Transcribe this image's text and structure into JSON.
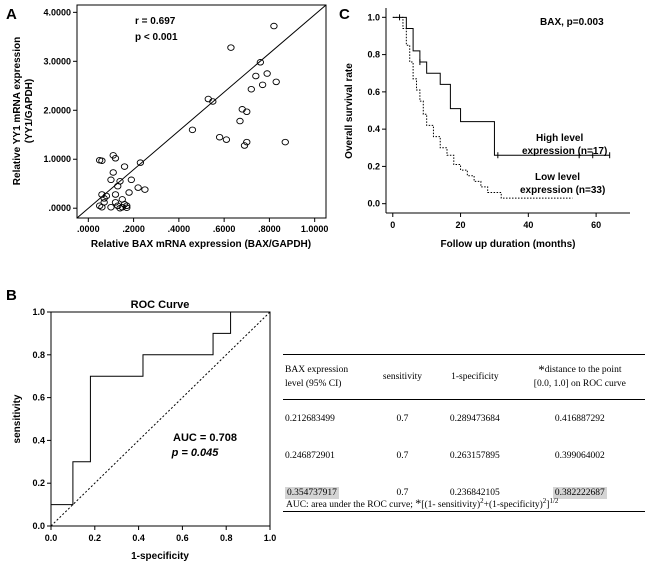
{
  "panels": {
    "a_label": "A",
    "b_label": "B",
    "c_label": "C"
  },
  "chart_data": [
    {
      "type": "scatter",
      "panel": "A",
      "xlabel": "Relative BAX mRNA expression (BAX/GAPDH)",
      "ylabel": "Relative YY1 mRNA expression",
      "ylabel2": "(YY1/GAPDH)",
      "xlim": [
        -0.05,
        1.05
      ],
      "ylim": [
        -0.2,
        4.15
      ],
      "xticks": [
        ".0000",
        ".2000",
        ".4000",
        ".6000",
        ".8000",
        "1.0000"
      ],
      "xtick_values": [
        0,
        0.2,
        0.4,
        0.6,
        0.8,
        1.0
      ],
      "yticks": [
        ".0000",
        "1.0000",
        "2.0000",
        "3.0000",
        "4.0000"
      ],
      "ytick_values": [
        0,
        1,
        2,
        3,
        4
      ],
      "annotation_r": "r = 0.697",
      "annotation_p": "p < 0.001",
      "fit_line": [
        [
          -0.05,
          -0.2
        ],
        [
          1.05,
          4.15
        ]
      ],
      "points": [
        [
          0.05,
          0.98
        ],
        [
          0.06,
          0.97
        ],
        [
          0.06,
          0.28
        ],
        [
          0.07,
          0.2
        ],
        [
          0.07,
          0.12
        ],
        [
          0.08,
          0.25
        ],
        [
          0.05,
          0.05
        ],
        [
          0.06,
          0.02
        ],
        [
          0.1,
          0.58
        ],
        [
          0.11,
          0.73
        ],
        [
          0.11,
          1.08
        ],
        [
          0.12,
          1.02
        ],
        [
          0.13,
          0.45
        ],
        [
          0.14,
          0.55
        ],
        [
          0.12,
          0.12
        ],
        [
          0.13,
          0.05
        ],
        [
          0.14,
          0.0
        ],
        [
          0.15,
          0.02
        ],
        [
          0.15,
          0.18
        ],
        [
          0.16,
          0.85
        ],
        [
          0.17,
          0.05
        ],
        [
          0.18,
          0.32
        ],
        [
          0.19,
          0.58
        ],
        [
          0.22,
          0.42
        ],
        [
          0.17,
          0.01
        ],
        [
          0.23,
          0.93
        ],
        [
          0.25,
          0.38
        ],
        [
          0.1,
          0.02
        ],
        [
          0.12,
          0.28
        ],
        [
          0.16,
          0.08
        ],
        [
          0.46,
          1.6
        ],
        [
          0.53,
          2.23
        ],
        [
          0.58,
          1.45
        ],
        [
          0.61,
          1.4
        ],
        [
          0.63,
          3.28
        ],
        [
          0.67,
          1.78
        ],
        [
          0.68,
          2.02
        ],
        [
          0.69,
          1.28
        ],
        [
          0.7,
          1.35
        ],
        [
          0.7,
          1.97
        ],
        [
          0.72,
          2.43
        ],
        [
          0.74,
          2.7
        ],
        [
          0.76,
          2.98
        ],
        [
          0.77,
          2.52
        ],
        [
          0.79,
          2.75
        ],
        [
          0.82,
          3.72
        ],
        [
          0.83,
          2.58
        ],
        [
          0.87,
          1.35
        ],
        [
          0.55,
          2.18
        ]
      ]
    },
    {
      "type": "line",
      "panel": "C",
      "title": "BAX, p=0.003",
      "xlabel": "Follow up duration (months)",
      "ylabel": "Overall survival rate",
      "xlim": [
        -2,
        70
      ],
      "ylim": [
        -0.05,
        1.05
      ],
      "xticks": [
        "0",
        "20",
        "40",
        "60"
      ],
      "xtick_values": [
        0,
        20,
        40,
        60
      ],
      "yticks": [
        "0.0",
        "0.2",
        "0.4",
        "0.6",
        "0.8",
        "1.0"
      ],
      "ytick_values": [
        0,
        0.2,
        0.4,
        0.6,
        0.8,
        1.0
      ],
      "series": [
        {
          "name": "High level expression (n=17)",
          "label_line1": "High level",
          "label_line2": "expression (n=17)",
          "style": "solid",
          "steps": [
            [
              0,
              1.0
            ],
            [
              4,
              0.94
            ],
            [
              6,
              0.82
            ],
            [
              8,
              0.76
            ],
            [
              10,
              0.7
            ],
            [
              14,
              0.64
            ],
            [
              17,
              0.51
            ],
            [
              20,
              0.44
            ],
            [
              30,
              0.26
            ],
            [
              64,
              0.26
            ]
          ],
          "censored": [
            [
              2,
              1.0
            ],
            [
              8,
              0.76
            ],
            [
              31,
              0.26
            ],
            [
              55,
              0.26
            ],
            [
              59,
              0.26
            ],
            [
              64,
              0.26
            ]
          ]
        },
        {
          "name": "Low level expression (n=33)",
          "label_line1": "Low level",
          "label_line2": "expression (n=33)",
          "style": "dotted",
          "steps": [
            [
              0,
              1.0
            ],
            [
              3,
              0.94
            ],
            [
              4,
              0.85
            ],
            [
              5,
              0.76
            ],
            [
              6,
              0.67
            ],
            [
              7,
              0.61
            ],
            [
              8,
              0.55
            ],
            [
              9,
              0.48
            ],
            [
              10,
              0.42
            ],
            [
              12,
              0.36
            ],
            [
              14,
              0.3
            ],
            [
              16,
              0.26
            ],
            [
              18,
              0.21
            ],
            [
              20,
              0.18
            ],
            [
              22,
              0.15
            ],
            [
              24,
              0.12
            ],
            [
              26,
              0.09
            ],
            [
              28,
              0.06
            ],
            [
              32,
              0.03
            ],
            [
              53,
              0.03
            ]
          ],
          "censored": []
        }
      ]
    },
    {
      "type": "line",
      "panel": "B",
      "title": "ROC Curve",
      "xlabel": "1-specificity",
      "ylabel": "sensitivity",
      "xlim": [
        0,
        1
      ],
      "ylim": [
        0,
        1
      ],
      "xticks": [
        "0.0",
        "0.2",
        "0.4",
        "0.6",
        "0.8",
        "1.0"
      ],
      "yticks": [
        "0.0",
        "0.2",
        "0.4",
        "0.6",
        "0.8",
        "1.0"
      ],
      "tick_values": [
        0,
        0.2,
        0.4,
        0.6,
        0.8,
        1.0
      ],
      "annotation_auc": "AUC = 0.708",
      "annotation_p": "p = 0.045",
      "roc": [
        [
          0,
          0
        ],
        [
          0,
          0.1
        ],
        [
          0.1,
          0.1
        ],
        [
          0.1,
          0.3
        ],
        [
          0.18,
          0.3
        ],
        [
          0.18,
          0.7
        ],
        [
          0.42,
          0.7
        ],
        [
          0.42,
          0.8
        ],
        [
          0.74,
          0.8
        ],
        [
          0.74,
          0.9
        ],
        [
          0.82,
          0.9
        ],
        [
          0.82,
          1.0
        ],
        [
          1.0,
          1.0
        ]
      ],
      "reference": [
        [
          0,
          0
        ],
        [
          1,
          1
        ]
      ]
    }
  ],
  "table": {
    "headers": {
      "h1_line1": "BAX expression",
      "h1_line2": "level (95% CI)",
      "h2": "sensitivity",
      "h3": "1-specificity",
      "h4_star": "*",
      "h4_line1": "distance to the point",
      "h4_line2": "[0.0, 1.0] on ROC curve"
    },
    "rows": [
      {
        "level": "0.212683499",
        "sensitivity": "0.7",
        "specificity": "0.289473684",
        "distance": "0.416887292"
      },
      {
        "level": "0.246872901",
        "sensitivity": "0.7",
        "specificity": "0.263157895",
        "distance": "0.399064002"
      },
      {
        "level": "0.354737917",
        "sensitivity": "0.7",
        "specificity": "0.236842105",
        "distance": "0.382222687"
      }
    ],
    "footnote": {
      "auc": "AUC: area under the ROC curve;",
      "star": "*",
      "formula_a": "[(1- sensitivity)",
      "sup_a": "2",
      "formula_b": "+(1-specificity)",
      "sup_b": "2",
      "formula_c": "]",
      "sup_c": "1/2"
    }
  }
}
